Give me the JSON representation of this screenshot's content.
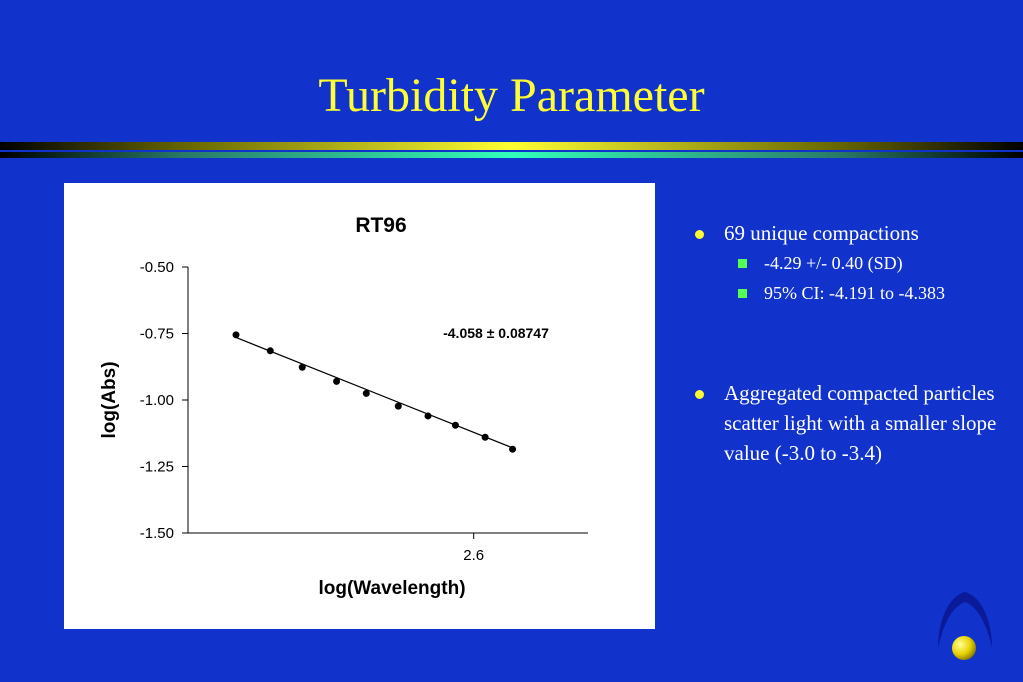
{
  "slide": {
    "title": "Turbidity Parameter",
    "bullets": [
      {
        "text": "69 unique compactions",
        "sub": [
          "-4.29  +/-  0.40 (SD)",
          "95% CI:  -4.191 to -4.383"
        ]
      },
      {
        "text": "Aggregated compacted particles scatter light with a smaller slope value (-3.0 to -3.4)",
        "sub": []
      }
    ]
  },
  "colors": {
    "background": "#1133cc",
    "title": "#ffff33",
    "bullet_primary": "#ffff33",
    "bullet_secondary": "#55ff55"
  },
  "chart_data": {
    "type": "scatter",
    "title": "RT96",
    "xlabel": "log(Wavelength)",
    "ylabel": "log(Abs)",
    "annotation": "-4.058 ± 0.08747",
    "x_ticks": [
      {
        "value": 2.6,
        "label": "2.6"
      }
    ],
    "y_ticks": [
      {
        "value": -0.5,
        "label": "-0.50"
      },
      {
        "value": -0.75,
        "label": "-0.75"
      },
      {
        "value": -1.0,
        "label": "-1.00"
      },
      {
        "value": -1.25,
        "label": "-1.25"
      },
      {
        "value": -1.5,
        "label": "-1.50"
      }
    ],
    "xlim": [
      2.475,
      2.65
    ],
    "ylim": [
      -1.5,
      -0.5
    ],
    "grid": false,
    "series": [
      {
        "x": [
          2.496,
          2.511,
          2.525,
          2.54,
          2.553,
          2.567,
          2.58,
          2.592,
          2.605,
          2.617
        ],
        "y": [
          -0.755,
          -0.815,
          -0.877,
          -0.93,
          -0.975,
          -1.023,
          -1.06,
          -1.095,
          -1.14,
          -1.185
        ]
      }
    ],
    "fit_line": {
      "x": [
        2.496,
        2.617
      ],
      "y": [
        -0.765,
        -1.18
      ]
    }
  }
}
